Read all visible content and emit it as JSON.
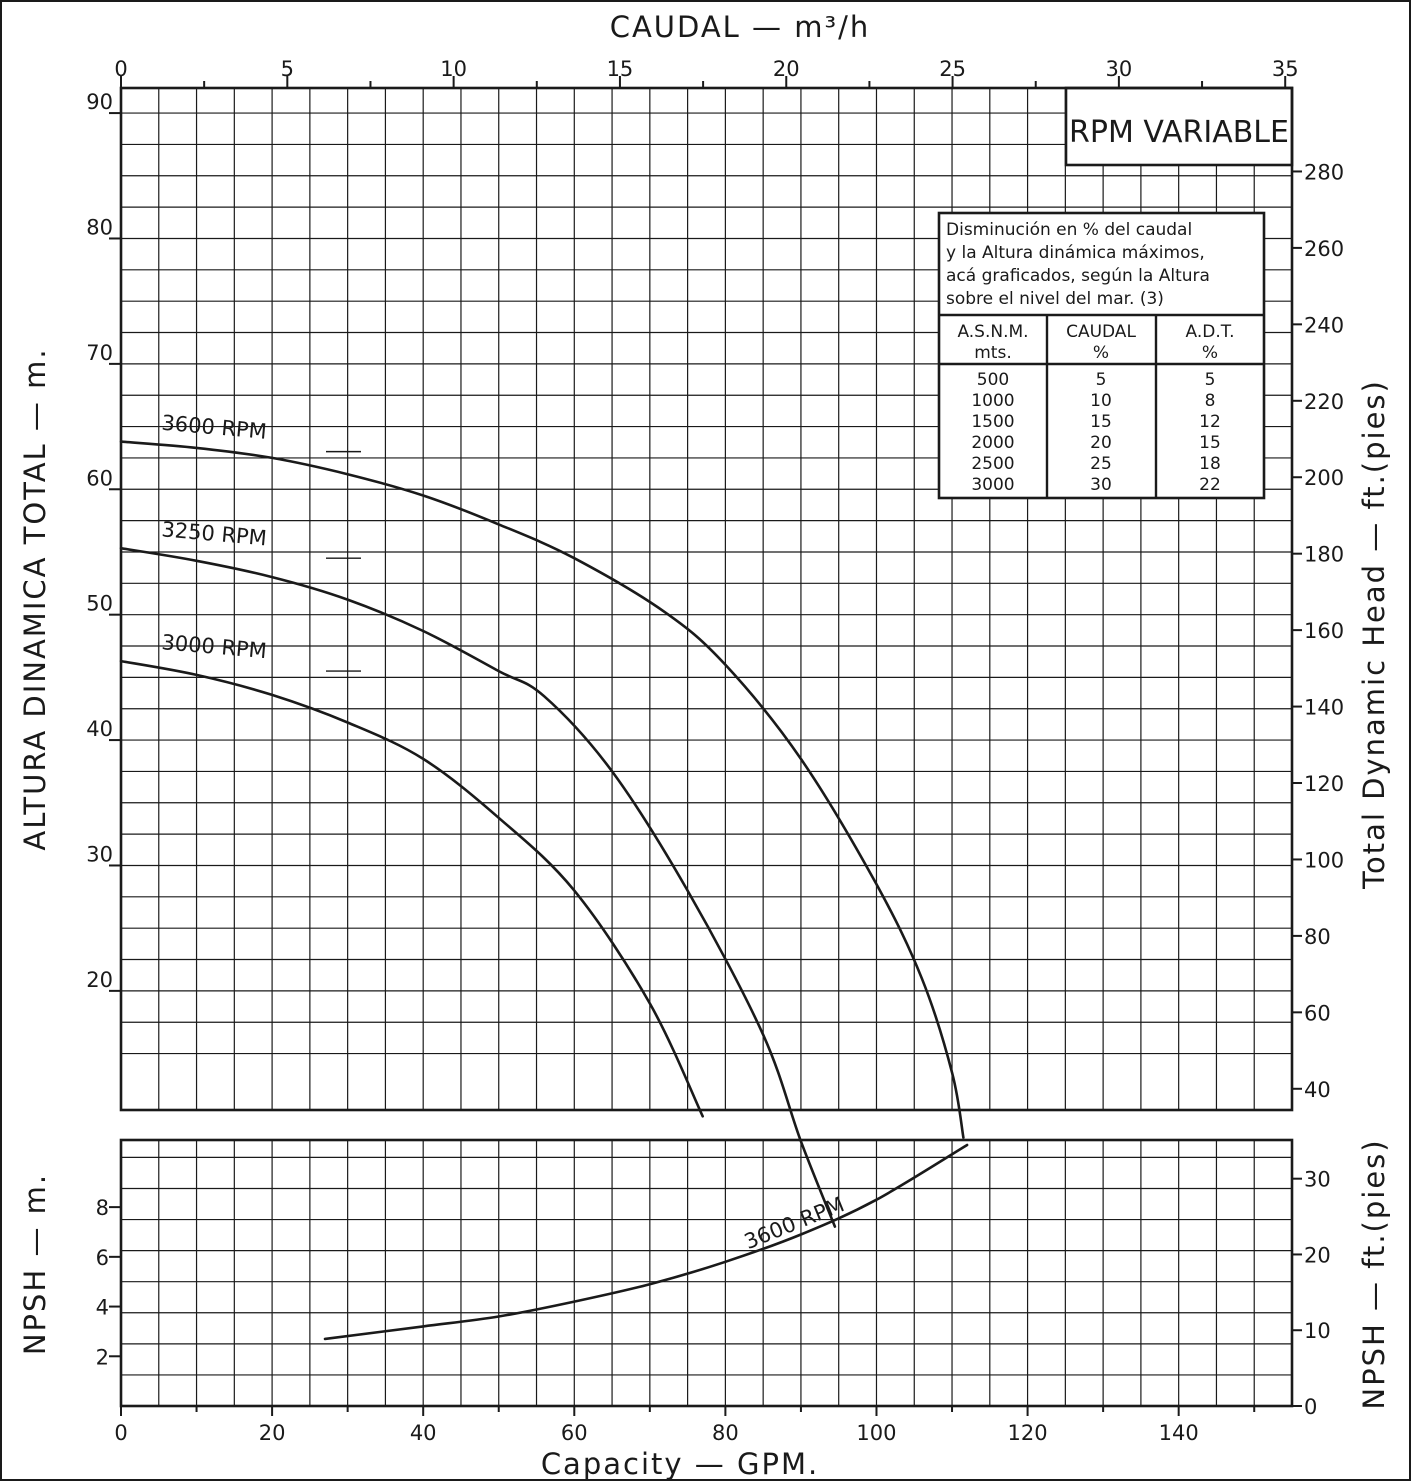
{
  "chart_data": [
    {
      "type": "line",
      "title": "",
      "x_top_label": "CAUDAL  — m³/h",
      "x_top_ticks": [
        "0",
        "5",
        "10",
        "15",
        "20",
        "25",
        "30",
        "35"
      ],
      "xlabel": "Capacity — GPM.",
      "x_ticks": [
        "0",
        "20",
        "40",
        "60",
        "80",
        "100",
        "120",
        "140"
      ],
      "xlim": [
        0,
        155
      ],
      "ylabel": "ALTURA DINAMICA TOTAL — m.",
      "y_ticks": [
        "20",
        "30",
        "40",
        "50",
        "60",
        "70",
        "80",
        "90"
      ],
      "ylim": [
        10.5,
        92
      ],
      "y2label": "Total Dynamic Head — ft.(pies)",
      "y2_ticks": [
        "40",
        "60",
        "80",
        "100",
        "120",
        "140",
        "160",
        "180",
        "200",
        "220",
        "240",
        "260",
        "280"
      ],
      "grid": true,
      "badge": "RPM VARIABLE",
      "series": [
        {
          "name": "3600 RPM",
          "x": [
            0,
            10,
            20,
            30,
            40,
            50,
            60,
            72,
            80,
            90,
            100,
            106,
            110,
            111.5
          ],
          "y": [
            63.8,
            63.3,
            62.5,
            61.2,
            59.5,
            57.2,
            54.5,
            50.2,
            46.0,
            38.5,
            28.5,
            21.0,
            13.5,
            8.3
          ]
        },
        {
          "name": "3250 RPM",
          "x": [
            0,
            10,
            20,
            30,
            40,
            50,
            56,
            65,
            75,
            85,
            90,
            94.5
          ],
          "y": [
            55.3,
            54.3,
            53.0,
            51.2,
            48.7,
            45.5,
            43.5,
            37.5,
            28.0,
            16.5,
            8.0,
            1.2
          ]
        },
        {
          "name": "3000 RPM",
          "x": [
            0,
            10,
            20,
            30,
            40,
            50,
            60,
            70,
            77
          ],
          "y": [
            46.3,
            45.2,
            43.6,
            41.4,
            38.5,
            33.8,
            28.0,
            19.0,
            10.0
          ]
        }
      ],
      "table": {
        "caption": [
          "Disminución  en % del caudal",
          "y la Altura dinámica máximos,",
          "acá graficados, según la Altura",
          "sobre el nivel del mar. (3)"
        ],
        "headers": [
          [
            "A.S.N.M.",
            "mts."
          ],
          [
            "CAUDAL",
            "%"
          ],
          [
            "A.D.T.",
            "%"
          ]
        ],
        "rows": [
          [
            "500",
            "5",
            "5"
          ],
          [
            "1000",
            "10",
            "8"
          ],
          [
            "1500",
            "15",
            "12"
          ],
          [
            "2000",
            "20",
            "15"
          ],
          [
            "2500",
            "25",
            "18"
          ],
          [
            "3000",
            "30",
            "22"
          ]
        ]
      }
    },
    {
      "type": "line",
      "xlabel": "Capacity — GPM.",
      "xlim": [
        0,
        155
      ],
      "ylabel": "NPSH — m.",
      "y_ticks": [
        "2",
        "4",
        "6",
        "8"
      ],
      "ylim": [
        0,
        10.7
      ],
      "y2label": "NPSH — ft.(pies)",
      "y2_ticks": [
        "0",
        "10",
        "20",
        "30"
      ],
      "grid": true,
      "series": [
        {
          "name": "3600 RPM",
          "x": [
            27,
            40,
            50,
            60,
            70,
            80,
            90,
            100,
            112
          ],
          "y": [
            2.7,
            3.2,
            3.6,
            4.2,
            4.9,
            5.8,
            6.9,
            8.3,
            10.5
          ]
        }
      ]
    }
  ]
}
